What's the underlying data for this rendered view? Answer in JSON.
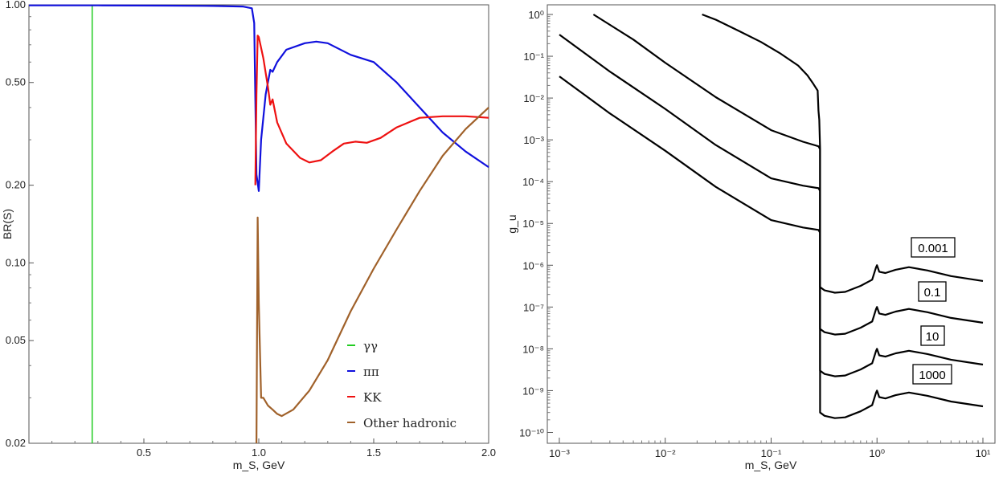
{
  "chart_data": [
    {
      "type": "line",
      "title": "",
      "xlabel": "m_S, GeV",
      "ylabel": "BR(S)",
      "yscale": "log",
      "xlim": [
        0.0,
        2.0
      ],
      "ylim": [
        0.02,
        1.0
      ],
      "x_ticks": [
        "0.5",
        "1.0",
        "1.5",
        "2.0"
      ],
      "y_ticks": [
        "0.02",
        "0.05",
        "0.10",
        "0.20",
        "0.50",
        "1.00"
      ],
      "grid": false,
      "legend_position": "bottom-right",
      "series": [
        {
          "name": "γγ",
          "color": "#22cc22",
          "points": [
            [
              0.0,
              0.995
            ],
            [
              0.275,
              0.995
            ],
            [
              0.275,
              0.02
            ]
          ]
        },
        {
          "name": "ππ",
          "color": "#1010dd",
          "points": [
            [
              0.0,
              0.995
            ],
            [
              0.3,
              0.995
            ],
            [
              0.6,
              0.993
            ],
            [
              0.8,
              0.99
            ],
            [
              0.93,
              0.985
            ],
            [
              0.97,
              0.97
            ],
            [
              0.98,
              0.85
            ],
            [
              0.99,
              0.22
            ],
            [
              1.0,
              0.19
            ],
            [
              1.01,
              0.3
            ],
            [
              1.03,
              0.45
            ],
            [
              1.05,
              0.56
            ],
            [
              1.06,
              0.55
            ],
            [
              1.08,
              0.6
            ],
            [
              1.12,
              0.67
            ],
            [
              1.2,
              0.71
            ],
            [
              1.25,
              0.72
            ],
            [
              1.3,
              0.71
            ],
            [
              1.4,
              0.64
            ],
            [
              1.5,
              0.6
            ],
            [
              1.6,
              0.5
            ],
            [
              1.7,
              0.4
            ],
            [
              1.8,
              0.32
            ],
            [
              1.9,
              0.27
            ],
            [
              2.0,
              0.235
            ]
          ]
        },
        {
          "name": "KK",
          "color": "#ee1111",
          "points": [
            [
              0.985,
              0.2
            ],
            [
              0.99,
              0.45
            ],
            [
              0.995,
              0.76
            ],
            [
              1.0,
              0.75
            ],
            [
              1.02,
              0.62
            ],
            [
              1.04,
              0.48
            ],
            [
              1.05,
              0.41
            ],
            [
              1.06,
              0.43
            ],
            [
              1.08,
              0.35
            ],
            [
              1.12,
              0.29
            ],
            [
              1.18,
              0.255
            ],
            [
              1.22,
              0.245
            ],
            [
              1.27,
              0.25
            ],
            [
              1.32,
              0.27
            ],
            [
              1.37,
              0.29
            ],
            [
              1.42,
              0.295
            ],
            [
              1.47,
              0.292
            ],
            [
              1.53,
              0.305
            ],
            [
              1.6,
              0.335
            ],
            [
              1.7,
              0.365
            ],
            [
              1.8,
              0.37
            ],
            [
              1.9,
              0.37
            ],
            [
              2.0,
              0.365
            ]
          ]
        },
        {
          "name": "Other hadronic",
          "color": "#a0612a",
          "points": [
            [
              0.99,
              0.02
            ],
            [
              0.995,
              0.15
            ],
            [
              1.0,
              0.07
            ],
            [
              1.01,
              0.03
            ],
            [
              1.02,
              0.03
            ],
            [
              1.04,
              0.028
            ],
            [
              1.06,
              0.027
            ],
            [
              1.08,
              0.026
            ],
            [
              1.1,
              0.0255
            ],
            [
              1.15,
              0.027
            ],
            [
              1.22,
              0.032
            ],
            [
              1.3,
              0.042
            ],
            [
              1.4,
              0.065
            ],
            [
              1.5,
              0.095
            ],
            [
              1.6,
              0.135
            ],
            [
              1.7,
              0.19
            ],
            [
              1.8,
              0.26
            ],
            [
              1.9,
              0.33
            ],
            [
              2.0,
              0.4
            ]
          ]
        }
      ]
    },
    {
      "type": "line",
      "title": "",
      "xlabel": "m_S, GeV",
      "ylabel": "g_u",
      "xscale": "log",
      "yscale": "log",
      "xlim": [
        0.001,
        10
      ],
      "ylim": [
        1e-10,
        1
      ],
      "x_ticks": [
        "10^-3",
        "10^-2",
        "10^-1",
        "10^0",
        "10^1"
      ],
      "y_ticks": [
        "10^-10",
        "10^-9",
        "10^-8",
        "10^-7",
        "10^-6",
        "10^-5",
        "10^-4",
        "10^-3",
        "10^-2",
        "10^-1",
        "10^0"
      ],
      "grid": false,
      "series": [
        {
          "name": "0.001",
          "color": "#000000",
          "points": [
            [
              0.0223,
              1.0
            ],
            [
              0.03,
              0.75
            ],
            [
              0.05,
              0.4
            ],
            [
              0.08,
              0.22
            ],
            [
              0.12,
              0.12
            ],
            [
              0.18,
              0.06
            ],
            [
              0.22,
              0.035
            ],
            [
              0.25,
              0.022
            ],
            [
              0.275,
              0.015
            ],
            [
              0.28,
              0.005
            ],
            [
              0.285,
              0.003
            ],
            [
              0.29,
              0.0006
            ],
            [
              0.29,
              3e-07
            ],
            [
              0.32,
              2.5e-07
            ],
            [
              0.4,
              2.2e-07
            ],
            [
              0.5,
              2.3e-07
            ],
            [
              0.7,
              3.2e-07
            ],
            [
              0.9,
              4.5e-07
            ],
            [
              0.98,
              9e-07
            ],
            [
              1.0,
              1e-06
            ],
            [
              1.05,
              7e-07
            ],
            [
              1.2,
              6.5e-07
            ],
            [
              1.5,
              7.8e-07
            ],
            [
              2.0,
              9e-07
            ],
            [
              3.0,
              7.5e-07
            ],
            [
              5.0,
              5.5e-07
            ],
            [
              10.0,
              4.2e-07
            ]
          ]
        },
        {
          "name": "0.1",
          "color": "#000000",
          "points": [
            [
              0.0021,
              1.0
            ],
            [
              0.005,
              0.25
            ],
            [
              0.01,
              0.07
            ],
            [
              0.03,
              0.0105
            ],
            [
              0.1,
              0.0017
            ],
            [
              0.2,
              0.0009
            ],
            [
              0.28,
              0.0007
            ],
            [
              0.29,
              0.0006
            ],
            [
              0.29,
              3e-08
            ],
            [
              0.32,
              2.5e-08
            ],
            [
              0.4,
              2.2e-08
            ],
            [
              0.5,
              2.3e-08
            ],
            [
              0.7,
              3.2e-08
            ],
            [
              0.9,
              4.5e-08
            ],
            [
              0.98,
              9e-08
            ],
            [
              1.0,
              1e-07
            ],
            [
              1.05,
              7e-08
            ],
            [
              1.2,
              6.5e-08
            ],
            [
              1.5,
              7.8e-08
            ],
            [
              2.0,
              9e-08
            ],
            [
              3.0,
              7.5e-08
            ],
            [
              5.0,
              5.5e-08
            ],
            [
              10.0,
              4.2e-08
            ]
          ]
        },
        {
          "name": "10",
          "color": "#000000",
          "points": [
            [
              0.001,
              0.33
            ],
            [
              0.003,
              0.043
            ],
            [
              0.01,
              0.0055
            ],
            [
              0.03,
              0.00075
            ],
            [
              0.1,
              0.00012
            ],
            [
              0.2,
              8e-05
            ],
            [
              0.28,
              7e-05
            ],
            [
              0.29,
              6e-05
            ],
            [
              0.29,
              3e-09
            ],
            [
              0.32,
              2.5e-09
            ],
            [
              0.4,
              2.2e-09
            ],
            [
              0.5,
              2.3e-09
            ],
            [
              0.7,
              3.2e-09
            ],
            [
              0.9,
              4.5e-09
            ],
            [
              0.98,
              9e-09
            ],
            [
              1.0,
              1e-08
            ],
            [
              1.05,
              7e-09
            ],
            [
              1.2,
              6.5e-09
            ],
            [
              1.5,
              7.8e-09
            ],
            [
              2.0,
              9e-09
            ],
            [
              3.0,
              7.5e-09
            ],
            [
              5.0,
              5.5e-09
            ],
            [
              10.0,
              4.2e-09
            ]
          ]
        },
        {
          "name": "1000",
          "color": "#000000",
          "points": [
            [
              0.001,
              0.033
            ],
            [
              0.003,
              0.0043
            ],
            [
              0.01,
              0.00055
            ],
            [
              0.03,
              7.5e-05
            ],
            [
              0.1,
              1.2e-05
            ],
            [
              0.2,
              8e-06
            ],
            [
              0.28,
              7e-06
            ],
            [
              0.29,
              6e-06
            ],
            [
              0.29,
              3e-10
            ],
            [
              0.32,
              2.5e-10
            ],
            [
              0.4,
              2.2e-10
            ],
            [
              0.5,
              2.3e-10
            ],
            [
              0.7,
              3.2e-10
            ],
            [
              0.9,
              4.5e-10
            ],
            [
              0.98,
              9e-10
            ],
            [
              1.0,
              1e-09
            ],
            [
              1.05,
              7e-10
            ],
            [
              1.2,
              6.5e-10
            ],
            [
              1.5,
              7.8e-10
            ],
            [
              2.0,
              9e-10
            ],
            [
              3.0,
              7.5e-10
            ],
            [
              5.0,
              5.5e-10
            ],
            [
              10.0,
              4.2e-10
            ]
          ]
        }
      ],
      "annotations": [
        "0.001",
        "0.1",
        "10",
        "1000"
      ]
    }
  ]
}
